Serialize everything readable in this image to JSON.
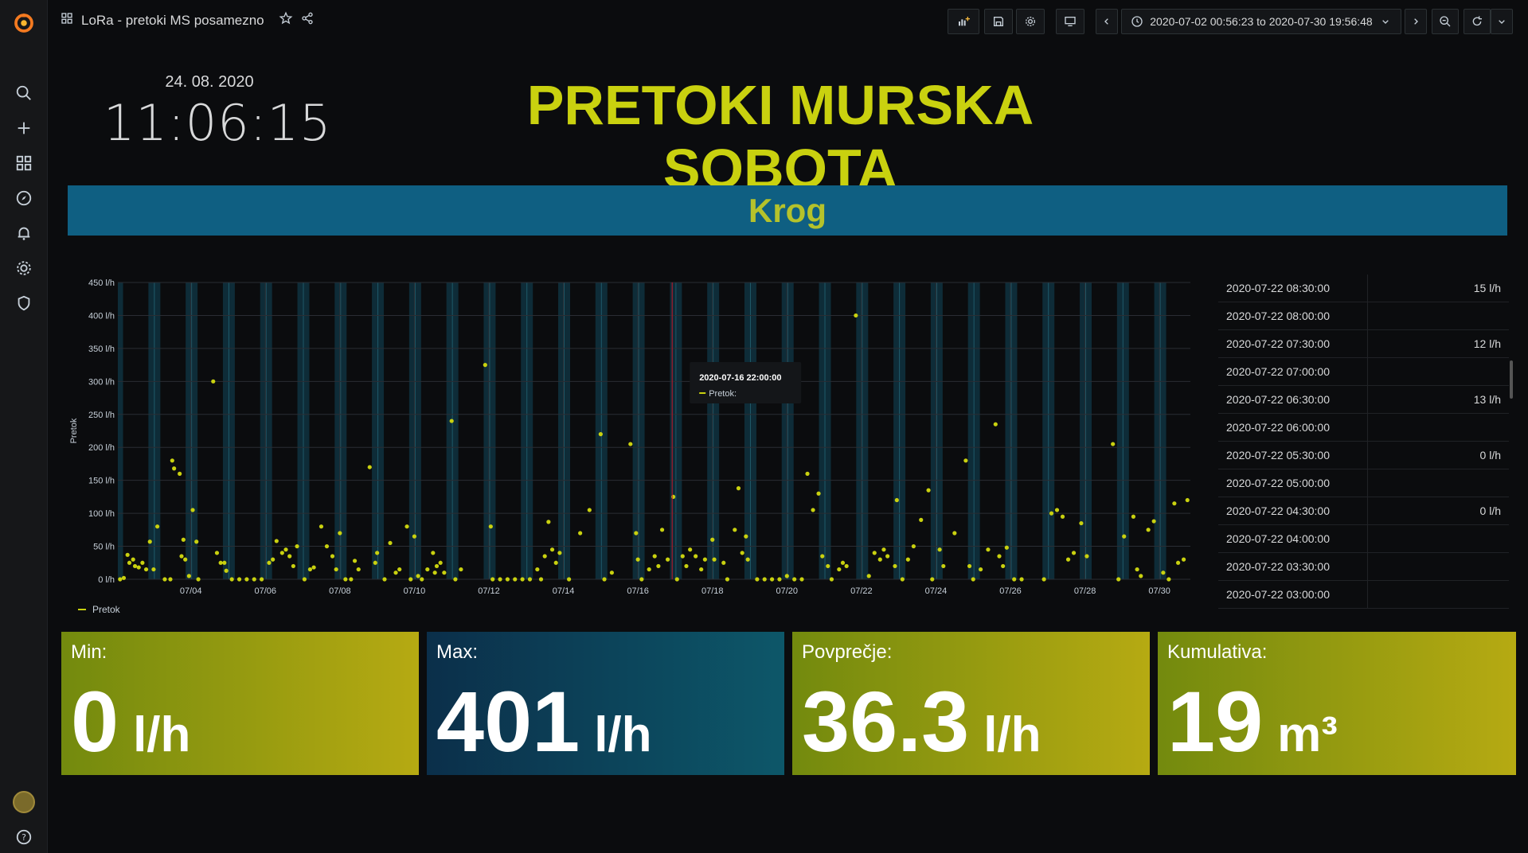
{
  "nav": {
    "title": "LoRa - pretoki MS posamezno",
    "timerange": "2020-07-02 00:56:23 to 2020-07-30 19:56:48"
  },
  "clock": {
    "date": "24. 08. 2020",
    "time": "11:06:15"
  },
  "main_title": "PRETOKI MURSKA SOBOTA",
  "section": "Krog",
  "graph": {
    "ylabel": "Pretok",
    "legend": "Pretok",
    "tooltip_time": "2020-07-16 22:00:00",
    "tooltip_series": "Pretok:",
    "series_color": "#c9d10f"
  },
  "chart_data": {
    "type": "scatter",
    "ylabel": "Pretok",
    "ylim": [
      0,
      450
    ],
    "yticks": [
      "0 l/h",
      "50 l/h",
      "100 l/h",
      "150 l/h",
      "200 l/h",
      "250 l/h",
      "300 l/h",
      "350 l/h",
      "400 l/h",
      "450 l/h"
    ],
    "xticks": [
      "07/04",
      "07/06",
      "07/08",
      "07/10",
      "07/12",
      "07/14",
      "07/16",
      "07/18",
      "07/20",
      "07/22",
      "07/24",
      "07/26",
      "07/28",
      "07/30"
    ],
    "xlim_days": [
      2.04,
      30.83
    ],
    "series": [
      {
        "name": "Pretok",
        "points": [
          [
            2.1,
            0
          ],
          [
            2.2,
            2
          ],
          [
            2.3,
            37
          ],
          [
            2.35,
            25
          ],
          [
            2.45,
            30
          ],
          [
            2.5,
            20
          ],
          [
            2.6,
            18
          ],
          [
            2.7,
            25
          ],
          [
            2.8,
            15
          ],
          [
            2.9,
            57
          ],
          [
            3.0,
            15
          ],
          [
            3.1,
            80
          ],
          [
            3.3,
            0
          ],
          [
            3.45,
            0
          ],
          [
            3.5,
            180
          ],
          [
            3.55,
            168
          ],
          [
            3.7,
            160
          ],
          [
            3.75,
            35
          ],
          [
            3.8,
            60
          ],
          [
            3.85,
            30
          ],
          [
            3.95,
            5
          ],
          [
            4.05,
            105
          ],
          [
            4.15,
            57
          ],
          [
            4.2,
            0
          ],
          [
            4.6,
            300
          ],
          [
            4.7,
            40
          ],
          [
            4.8,
            25
          ],
          [
            4.9,
            25
          ],
          [
            4.95,
            13
          ],
          [
            5.1,
            0
          ],
          [
            5.3,
            0
          ],
          [
            5.5,
            0
          ],
          [
            5.7,
            0
          ],
          [
            5.9,
            0
          ],
          [
            6.1,
            25
          ],
          [
            6.2,
            30
          ],
          [
            6.3,
            58
          ],
          [
            6.45,
            40
          ],
          [
            6.55,
            45
          ],
          [
            6.65,
            35
          ],
          [
            6.75,
            20
          ],
          [
            6.85,
            50
          ],
          [
            7.05,
            0
          ],
          [
            7.2,
            15
          ],
          [
            7.3,
            18
          ],
          [
            7.5,
            80
          ],
          [
            7.65,
            50
          ],
          [
            7.8,
            35
          ],
          [
            7.9,
            15
          ],
          [
            8.0,
            70
          ],
          [
            8.15,
            0
          ],
          [
            8.3,
            0
          ],
          [
            8.4,
            28
          ],
          [
            8.5,
            15
          ],
          [
            8.8,
            170
          ],
          [
            8.95,
            25
          ],
          [
            9.0,
            40
          ],
          [
            9.2,
            0
          ],
          [
            9.35,
            55
          ],
          [
            9.5,
            10
          ],
          [
            9.6,
            15
          ],
          [
            9.8,
            80
          ],
          [
            9.9,
            0
          ],
          [
            10.0,
            65
          ],
          [
            10.1,
            5
          ],
          [
            10.2,
            0
          ],
          [
            10.35,
            15
          ],
          [
            10.5,
            40
          ],
          [
            10.55,
            10
          ],
          [
            10.6,
            20
          ],
          [
            10.7,
            25
          ],
          [
            10.8,
            10
          ],
          [
            11.0,
            240
          ],
          [
            11.1,
            0
          ],
          [
            11.25,
            15
          ],
          [
            11.9,
            325
          ],
          [
            12.05,
            80
          ],
          [
            12.1,
            0
          ],
          [
            12.3,
            0
          ],
          [
            12.5,
            0
          ],
          [
            12.7,
            0
          ],
          [
            12.9,
            0
          ],
          [
            13.1,
            0
          ],
          [
            13.3,
            15
          ],
          [
            13.4,
            0
          ],
          [
            13.5,
            35
          ],
          [
            13.6,
            87
          ],
          [
            13.7,
            45
          ],
          [
            13.8,
            25
          ],
          [
            13.9,
            40
          ],
          [
            14.15,
            0
          ],
          [
            14.45,
            70
          ],
          [
            14.7,
            105
          ],
          [
            15.0,
            220
          ],
          [
            15.1,
            0
          ],
          [
            15.3,
            10
          ],
          [
            15.8,
            205
          ],
          [
            15.95,
            70
          ],
          [
            16.0,
            30
          ],
          [
            16.1,
            0
          ],
          [
            16.3,
            15
          ],
          [
            16.45,
            35
          ],
          [
            16.55,
            20
          ],
          [
            16.65,
            75
          ],
          [
            16.8,
            30
          ],
          [
            16.95,
            125
          ],
          [
            17.05,
            0
          ],
          [
            17.2,
            35
          ],
          [
            17.3,
            20
          ],
          [
            17.4,
            45
          ],
          [
            17.55,
            35
          ],
          [
            17.7,
            15
          ],
          [
            17.8,
            30
          ],
          [
            18.0,
            60
          ],
          [
            18.05,
            30
          ],
          [
            18.3,
            25
          ],
          [
            18.4,
            0
          ],
          [
            18.6,
            75
          ],
          [
            18.7,
            138
          ],
          [
            18.8,
            40
          ],
          [
            18.9,
            65
          ],
          [
            18.95,
            30
          ],
          [
            19.2,
            0
          ],
          [
            19.4,
            0
          ],
          [
            19.6,
            0
          ],
          [
            19.8,
            0
          ],
          [
            20.0,
            5
          ],
          [
            20.2,
            0
          ],
          [
            20.4,
            0
          ],
          [
            20.55,
            160
          ],
          [
            20.7,
            105
          ],
          [
            20.85,
            130
          ],
          [
            20.95,
            35
          ],
          [
            21.1,
            20
          ],
          [
            21.2,
            0
          ],
          [
            21.4,
            15
          ],
          [
            21.5,
            25
          ],
          [
            21.6,
            20
          ],
          [
            21.85,
            400
          ],
          [
            22.2,
            5
          ],
          [
            22.35,
            40
          ],
          [
            22.5,
            30
          ],
          [
            22.6,
            45
          ],
          [
            22.7,
            35
          ],
          [
            22.9,
            20
          ],
          [
            22.95,
            120
          ],
          [
            23.1,
            0
          ],
          [
            23.25,
            30
          ],
          [
            23.4,
            50
          ],
          [
            23.6,
            90
          ],
          [
            23.8,
            135
          ],
          [
            23.9,
            0
          ],
          [
            24.1,
            45
          ],
          [
            24.2,
            20
          ],
          [
            24.5,
            70
          ],
          [
            24.8,
            180
          ],
          [
            24.9,
            20
          ],
          [
            25.0,
            0
          ],
          [
            25.2,
            15
          ],
          [
            25.4,
            45
          ],
          [
            25.6,
            235
          ],
          [
            25.7,
            35
          ],
          [
            25.8,
            20
          ],
          [
            25.9,
            48
          ],
          [
            26.1,
            0
          ],
          [
            26.3,
            0
          ],
          [
            26.9,
            0
          ],
          [
            27.1,
            100
          ],
          [
            27.25,
            105
          ],
          [
            27.4,
            95
          ],
          [
            27.55,
            30
          ],
          [
            27.7,
            40
          ],
          [
            27.9,
            85
          ],
          [
            28.05,
            35
          ],
          [
            28.75,
            205
          ],
          [
            28.9,
            0
          ],
          [
            29.05,
            65
          ],
          [
            29.3,
            95
          ],
          [
            29.4,
            15
          ],
          [
            29.5,
            5
          ],
          [
            29.7,
            75
          ],
          [
            29.85,
            88
          ],
          [
            30.1,
            10
          ],
          [
            30.25,
            0
          ],
          [
            30.4,
            115
          ],
          [
            30.5,
            25
          ],
          [
            30.65,
            30
          ],
          [
            30.75,
            120
          ]
        ]
      }
    ]
  },
  "table": {
    "rows": [
      {
        "time": "2020-07-22 08:30:00",
        "value": "15 l/h"
      },
      {
        "time": "2020-07-22 08:00:00",
        "value": ""
      },
      {
        "time": "2020-07-22 07:30:00",
        "value": "12 l/h"
      },
      {
        "time": "2020-07-22 07:00:00",
        "value": ""
      },
      {
        "time": "2020-07-22 06:30:00",
        "value": "13 l/h"
      },
      {
        "time": "2020-07-22 06:00:00",
        "value": ""
      },
      {
        "time": "2020-07-22 05:30:00",
        "value": "0 l/h"
      },
      {
        "time": "2020-07-22 05:00:00",
        "value": ""
      },
      {
        "time": "2020-07-22 04:30:00",
        "value": "0 l/h"
      },
      {
        "time": "2020-07-22 04:00:00",
        "value": ""
      },
      {
        "time": "2020-07-22 03:30:00",
        "value": ""
      },
      {
        "time": "2020-07-22 03:00:00",
        "value": ""
      }
    ]
  },
  "stats": {
    "min": {
      "label": "Min:",
      "value": "0",
      "unit": "l/h"
    },
    "max": {
      "label": "Max:",
      "value": "401",
      "unit": "l/h"
    },
    "avg": {
      "label": "Povprečje:",
      "value": "36.3",
      "unit": "l/h"
    },
    "cum": {
      "label": "Kumulativa:",
      "value": "19",
      "unit": "m³"
    }
  }
}
